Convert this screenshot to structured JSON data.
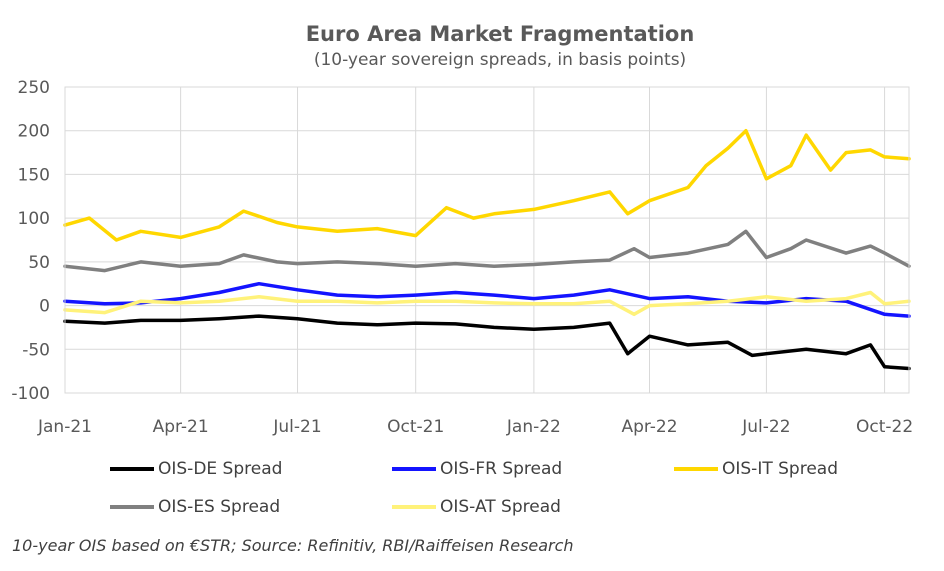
{
  "chart_data": {
    "type": "line",
    "title": "Euro Area Market Fragmentation",
    "subtitle": "(10-year sovereign spreads, in basis points)",
    "xlabel": "",
    "ylabel": "",
    "x_ticks": [
      "Jan-21",
      "Apr-21",
      "Jul-21",
      "Oct-21",
      "Jan-22",
      "Apr-22",
      "Jul-22",
      "Oct-22"
    ],
    "y_ticks": [
      "250",
      "200",
      "150",
      "100",
      "50",
      "0",
      "-50",
      "-100"
    ],
    "ylim": [
      -100,
      250
    ],
    "grid": true,
    "legend_position": "bottom",
    "footnote": "10-year OIS based on €STR; Source: Refinitiv, RBI/Raiffeisen Research",
    "series": [
      {
        "name": "OIS-DE Spread",
        "color": "#000000",
        "x": [
          "2021-01-01",
          "2021-02-01",
          "2021-03-01",
          "2021-04-01",
          "2021-05-01",
          "2021-06-01",
          "2021-07-01",
          "2021-08-01",
          "2021-09-01",
          "2021-10-01",
          "2021-11-01",
          "2021-12-01",
          "2022-01-01",
          "2022-02-01",
          "2022-03-01",
          "2022-03-15",
          "2022-04-01",
          "2022-05-01",
          "2022-06-01",
          "2022-06-20",
          "2022-07-01",
          "2022-08-01",
          "2022-09-01",
          "2022-09-20",
          "2022-10-01",
          "2022-10-20"
        ],
        "values": [
          -18,
          -20,
          -17,
          -17,
          -15,
          -12,
          -15,
          -20,
          -22,
          -20,
          -21,
          -25,
          -27,
          -25,
          -20,
          -55,
          -35,
          -45,
          -42,
          -57,
          -55,
          -50,
          -55,
          -45,
          -70,
          -72
        ]
      },
      {
        "name": "OIS-FR Spread",
        "color": "#1414ff",
        "x": [
          "2021-01-01",
          "2021-02-01",
          "2021-03-01",
          "2021-04-01",
          "2021-05-01",
          "2021-06-01",
          "2021-07-01",
          "2021-08-01",
          "2021-09-01",
          "2021-10-01",
          "2021-11-01",
          "2021-12-01",
          "2022-01-01",
          "2022-02-01",
          "2022-03-01",
          "2022-04-01",
          "2022-05-01",
          "2022-06-01",
          "2022-07-01",
          "2022-08-01",
          "2022-09-01",
          "2022-10-01",
          "2022-10-20"
        ],
        "values": [
          5,
          2,
          3,
          8,
          15,
          25,
          18,
          12,
          10,
          12,
          15,
          12,
          8,
          12,
          18,
          8,
          10,
          5,
          3,
          8,
          5,
          -10,
          -12
        ]
      },
      {
        "name": "OIS-IT Spread",
        "color": "#ffd700",
        "x": [
          "2021-01-01",
          "2021-01-20",
          "2021-02-10",
          "2021-03-01",
          "2021-04-01",
          "2021-05-01",
          "2021-05-20",
          "2021-06-15",
          "2021-07-01",
          "2021-08-01",
          "2021-09-01",
          "2021-10-01",
          "2021-10-25",
          "2021-11-15",
          "2021-12-01",
          "2022-01-01",
          "2022-02-01",
          "2022-03-01",
          "2022-03-15",
          "2022-04-01",
          "2022-05-01",
          "2022-05-15",
          "2022-06-01",
          "2022-06-15",
          "2022-07-01",
          "2022-07-20",
          "2022-08-01",
          "2022-08-20",
          "2022-09-01",
          "2022-09-20",
          "2022-10-01",
          "2022-10-20"
        ],
        "values": [
          92,
          100,
          75,
          85,
          78,
          90,
          108,
          95,
          90,
          85,
          88,
          80,
          112,
          100,
          105,
          110,
          120,
          130,
          105,
          120,
          135,
          160,
          180,
          200,
          145,
          160,
          195,
          155,
          175,
          178,
          170,
          168
        ]
      },
      {
        "name": "OIS-ES Spread",
        "color": "#808080",
        "x": [
          "2021-01-01",
          "2021-02-01",
          "2021-03-01",
          "2021-04-01",
          "2021-05-01",
          "2021-05-20",
          "2021-06-15",
          "2021-07-01",
          "2021-08-01",
          "2021-09-01",
          "2021-10-01",
          "2021-11-01",
          "2021-12-01",
          "2022-01-01",
          "2022-02-01",
          "2022-03-01",
          "2022-03-20",
          "2022-04-01",
          "2022-05-01",
          "2022-06-01",
          "2022-06-15",
          "2022-07-01",
          "2022-07-20",
          "2022-08-01",
          "2022-09-01",
          "2022-09-20",
          "2022-10-01",
          "2022-10-20"
        ],
        "values": [
          45,
          40,
          50,
          45,
          48,
          58,
          50,
          48,
          50,
          48,
          45,
          48,
          45,
          47,
          50,
          52,
          65,
          55,
          60,
          70,
          85,
          55,
          65,
          75,
          60,
          68,
          60,
          45
        ]
      },
      {
        "name": "OIS-AT Spread",
        "color": "#fff27a",
        "x": [
          "2021-01-01",
          "2021-02-01",
          "2021-03-01",
          "2021-04-01",
          "2021-05-01",
          "2021-06-01",
          "2021-07-01",
          "2021-08-01",
          "2021-09-01",
          "2021-10-01",
          "2021-11-01",
          "2021-12-01",
          "2022-01-01",
          "2022-02-01",
          "2022-03-01",
          "2022-03-20",
          "2022-04-01",
          "2022-05-01",
          "2022-06-01",
          "2022-07-01",
          "2022-08-01",
          "2022-09-01",
          "2022-09-20",
          "2022-10-01",
          "2022-10-20"
        ],
        "values": [
          -5,
          -8,
          5,
          3,
          5,
          10,
          5,
          5,
          3,
          5,
          5,
          3,
          2,
          2,
          5,
          -10,
          0,
          2,
          5,
          10,
          5,
          8,
          15,
          2,
          5
        ]
      }
    ]
  }
}
